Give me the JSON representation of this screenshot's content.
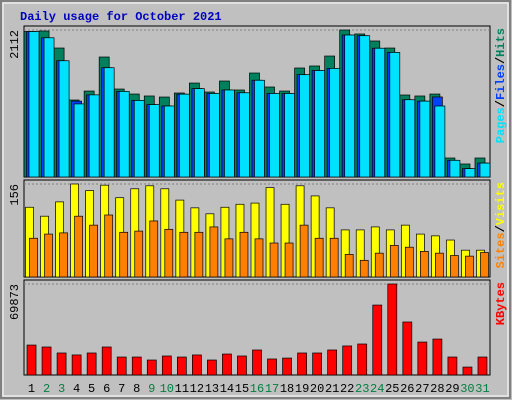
{
  "title": "Daily usage for October 2021",
  "legend_separator": "/",
  "chart_data": [
    {
      "type": "bar",
      "ylim": [
        0,
        2112
      ],
      "yticks": [
        2112
      ],
      "series": [
        {
          "name": "Hits",
          "color": "#00805c",
          "values": [
            2090,
            2098,
            1853,
            1106,
            1235,
            1724,
            1264,
            1192,
            1164,
            1149,
            1207,
            1350,
            1221,
            1379,
            1250,
            1494,
            1293,
            1235,
            1566,
            1595,
            1738,
            2112,
            2055,
            1954,
            1853,
            1178,
            1164,
            1192,
            273,
            187,
            273
          ]
        },
        {
          "name": "Files",
          "color": "#0040ff",
          "values": [
            2090,
            2000,
            1670,
            1090,
            1180,
            1570,
            1230,
            1100,
            1040,
            1020,
            1190,
            1270,
            1200,
            1250,
            1210,
            1390,
            1200,
            1200,
            1470,
            1530,
            1560,
            2040,
            2030,
            1850,
            1790,
            1110,
            1090,
            1150,
            240,
            120,
            200
          ]
        },
        {
          "name": "Pages",
          "color": "#00e0ff",
          "values": [
            2090,
            2000,
            1670,
            1050,
            1180,
            1570,
            1230,
            1100,
            1040,
            1020,
            1190,
            1270,
            1200,
            1250,
            1210,
            1390,
            1200,
            1200,
            1470,
            1530,
            1560,
            2040,
            2030,
            1850,
            1790,
            1110,
            1090,
            1020,
            240,
            120,
            200
          ]
        }
      ]
    },
    {
      "type": "bar",
      "ylim": [
        0,
        156
      ],
      "yticks": [
        156
      ],
      "series": [
        {
          "name": "Visits",
          "color": "#ffff00",
          "values": [
            117,
            102,
            126,
            156,
            145,
            154,
            133,
            148,
            153,
            148,
            129,
            116,
            106,
            117,
            122,
            124,
            150,
            122,
            153,
            136,
            116,
            79,
            79,
            84,
            79,
            87,
            72,
            69,
            62,
            45,
            45
          ]
        },
        {
          "name": "Sites",
          "color": "#ff8000",
          "values": [
            65,
            72,
            74,
            102,
            87,
            104,
            75,
            77,
            94,
            80,
            75,
            75,
            84,
            64,
            75,
            64,
            57,
            57,
            87,
            65,
            65,
            38,
            28,
            40,
            53,
            50,
            43,
            40,
            36,
            35,
            41
          ]
        }
      ]
    },
    {
      "type": "bar",
      "ylim": [
        0,
        69873
      ],
      "yticks": [
        69873
      ],
      "categories": [
        "1",
        "2",
        "3",
        "4",
        "5",
        "6",
        "7",
        "8",
        "9",
        "10",
        "11",
        "12",
        "13",
        "14",
        "15",
        "16",
        "17",
        "18",
        "19",
        "20",
        "21",
        "22",
        "23",
        "24",
        "25",
        "26",
        "27",
        "28",
        "29",
        "30",
        "31"
      ],
      "category_color": "#000000",
      "weekend_color": "#008040",
      "weekend_indices": [
        1,
        2,
        8,
        9,
        15,
        16,
        22,
        23,
        29,
        30
      ],
      "series": [
        {
          "name": "KBytes",
          "color": "#ff0000",
          "values": [
            23000,
            21500,
            16900,
            15400,
            16900,
            21500,
            13800,
            13800,
            11500,
            14600,
            13800,
            15400,
            11500,
            16100,
            14600,
            19200,
            12300,
            13000,
            16900,
            16900,
            19200,
            22300,
            23800,
            53700,
            69873,
            40700,
            25300,
            27600,
            13800,
            6100,
            13800
          ]
        }
      ]
    }
  ]
}
